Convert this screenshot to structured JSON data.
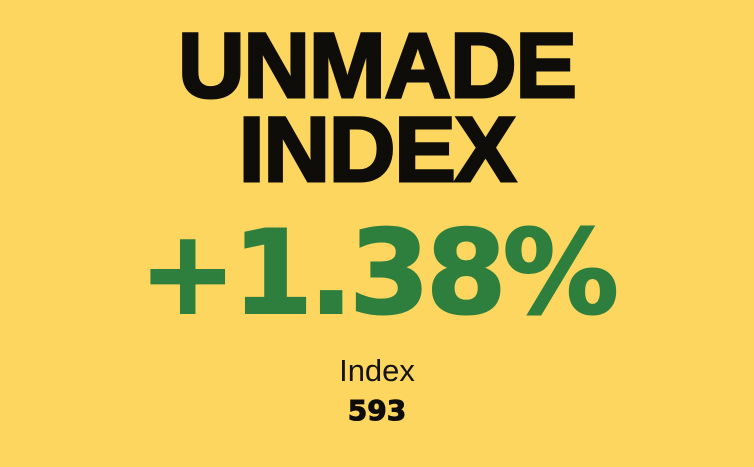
{
  "colors": {
    "background": "#fcd65e",
    "title_text": "#0f0d09",
    "change_positive": "#2e7f3e",
    "label_text": "#141414"
  },
  "card": {
    "title_line1": "UNMADE",
    "title_line2": "INDEX",
    "change_percent": "+1.38%",
    "index_label": "Index",
    "index_value": "593"
  }
}
